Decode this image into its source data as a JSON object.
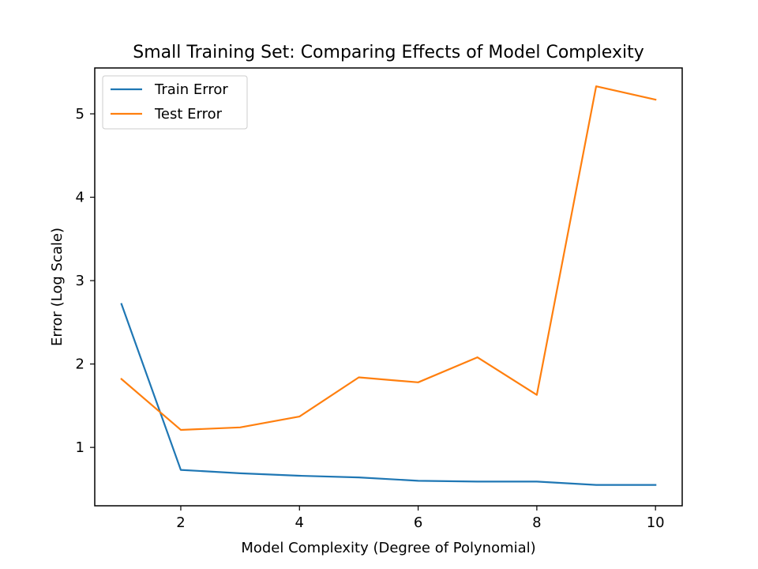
{
  "chart_data": {
    "type": "line",
    "title": "Small Training Set: Comparing Effects of Model Complexity",
    "xlabel": "Model Complexity (Degree of Polynomial)",
    "ylabel": "Error (Log Scale)",
    "x": [
      1,
      2,
      3,
      4,
      5,
      6,
      7,
      8,
      9,
      10
    ],
    "xlim": [
      0.55,
      10.45
    ],
    "ylim": [
      0.3,
      5.55
    ],
    "xticks": [
      2,
      4,
      6,
      8,
      10
    ],
    "xtick_labels": [
      "2",
      "4",
      "6",
      "8",
      "10"
    ],
    "yticks": [
      1,
      2,
      3,
      4,
      5
    ],
    "ytick_labels": [
      "1",
      "2",
      "3",
      "4",
      "5"
    ],
    "grid": false,
    "legend_position": "top-left",
    "series": [
      {
        "name": "Train Error",
        "color": "#1f77b4",
        "values": [
          2.72,
          0.73,
          0.69,
          0.66,
          0.64,
          0.6,
          0.59,
          0.59,
          0.55,
          0.55
        ]
      },
      {
        "name": "Test Error",
        "color": "#ff7f0e",
        "values": [
          1.82,
          1.21,
          1.24,
          1.37,
          1.84,
          1.78,
          2.08,
          1.63,
          5.33,
          5.17
        ]
      }
    ]
  }
}
